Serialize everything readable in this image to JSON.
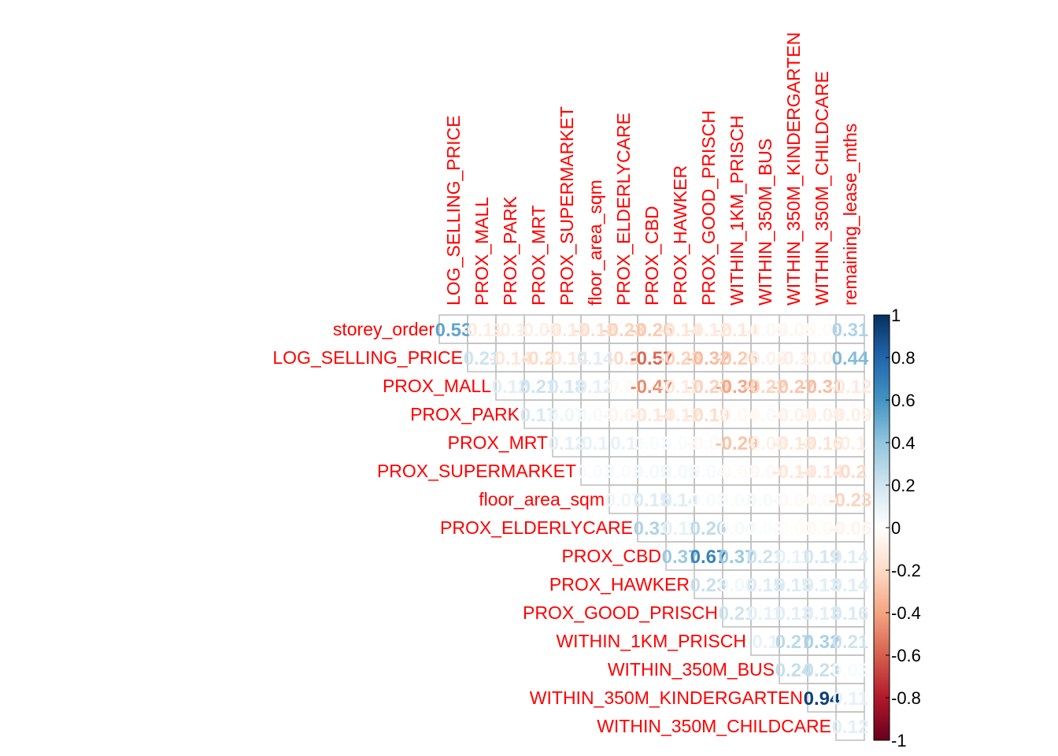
{
  "chart_data": {
    "type": "heatmap",
    "style": "upper-triangle correlation matrix (corrplot, method=number)",
    "row_labels": [
      "storey_order",
      "LOG_SELLING_PRICE",
      "PROX_MALL",
      "PROX_PARK",
      "PROX_MRT",
      "PROX_SUPERMARKET",
      "floor_area_sqm",
      "PROX_ELDERLYCARE",
      "PROX_CBD",
      "PROX_HAWKER",
      "PROX_GOOD_PRISCH",
      "WITHIN_1KM_PRISCH",
      "WITHIN_350M_BUS",
      "WITHIN_350M_KINDERGARTEN",
      "WITHIN_350M_CHILDCARE"
    ],
    "col_labels": [
      "LOG_SELLING_PRICE",
      "PROX_MALL",
      "PROX_PARK",
      "PROX_MRT",
      "PROX_SUPERMARKET",
      "floor_area_sqm",
      "PROX_ELDERLYCARE",
      "PROX_CBD",
      "PROX_HAWKER",
      "PROX_GOOD_PRISCH",
      "WITHIN_1KM_PRISCH",
      "WITHIN_350M_BUS",
      "WITHIN_350M_KINDERGARTEN",
      "WITHIN_350M_CHILDCARE",
      "remaining_lease_mths"
    ],
    "values": [
      [
        0.53,
        -0.11,
        -0.1,
        -0.09,
        -0.13,
        -0.18,
        -0.23,
        -0.26,
        -0.14,
        -0.12,
        -0.14,
        -0.05,
        -0.05,
        -0.03,
        0.31
      ],
      [
        null,
        0.21,
        -0.14,
        -0.2,
        -0.14,
        0.14,
        -0.2,
        -0.57,
        -0.23,
        -0.32,
        -0.26,
        -0.08,
        -0.1,
        -0.08,
        0.44
      ],
      [
        null,
        null,
        0.12,
        0.21,
        0.18,
        0.12,
        -0.04,
        -0.47,
        -0.12,
        -0.23,
        -0.39,
        -0.22,
        -0.27,
        -0.31,
        -0.12
      ],
      [
        null,
        null,
        null,
        0.17,
        0.07,
        0.04,
        -0.06,
        -0.14,
        -0.12,
        -0.19,
        -0.04,
        -0.04,
        -0.08,
        -0.09,
        -0.09
      ],
      [
        null,
        null,
        null,
        null,
        0.12,
        0.1,
        0.1,
        0.03,
        0.03,
        -0.04,
        -0.29,
        -0.08,
        -0.13,
        -0.16,
        -0.1
      ],
      [
        null,
        null,
        null,
        null,
        null,
        0.03,
        0.03,
        0.05,
        0.05,
        0.04,
        -0.03,
        -0.04,
        -0.14,
        -0.14,
        -0.2
      ],
      [
        null,
        null,
        null,
        null,
        null,
        null,
        0.07,
        0.15,
        0.14,
        0.03,
        0.03,
        0.04,
        -0.04,
        -0.04,
        -0.23
      ],
      [
        null,
        null,
        null,
        null,
        null,
        null,
        null,
        0.31,
        0.11,
        0.26,
        0.04,
        0.02,
        -0.02,
        -0.04,
        -0.06
      ],
      [
        null,
        null,
        null,
        null,
        null,
        null,
        null,
        null,
        0.37,
        0.67,
        0.37,
        0.21,
        0.11,
        0.19,
        0.14
      ],
      [
        null,
        null,
        null,
        null,
        null,
        null,
        null,
        null,
        null,
        0.23,
        0.06,
        0.15,
        0.15,
        0.13,
        0.14
      ],
      [
        null,
        null,
        null,
        null,
        null,
        null,
        null,
        null,
        null,
        null,
        0.21,
        0.11,
        0.13,
        0.13,
        0.16
      ],
      [
        null,
        null,
        null,
        null,
        null,
        null,
        null,
        null,
        null,
        null,
        null,
        0.1,
        0.27,
        0.32,
        0.21
      ],
      [
        null,
        null,
        null,
        null,
        null,
        null,
        null,
        null,
        null,
        null,
        null,
        null,
        0.24,
        0.23,
        0.03
      ],
      [
        null,
        null,
        null,
        null,
        null,
        null,
        null,
        null,
        null,
        null,
        null,
        null,
        null,
        0.94,
        0.11
      ],
      [
        null,
        null,
        null,
        null,
        null,
        null,
        null,
        null,
        null,
        null,
        null,
        null,
        null,
        null,
        0.12
      ]
    ],
    "color_scale": {
      "min": -1,
      "max": 1,
      "ticks": [
        "1",
        "0.8",
        "0.6",
        "0.4",
        "0.2",
        "0",
        "-0.2",
        "-0.4",
        "-0.6",
        "-0.8",
        "-1"
      ],
      "palette": [
        "#67001F",
        "#B2182B",
        "#D6604D",
        "#F4A582",
        "#FDDBC7",
        "#FFFFFF",
        "#D1E5F0",
        "#92C5DE",
        "#4393C3",
        "#2166AC",
        "#053061"
      ],
      "placement": "right"
    },
    "label_color": "#FF0000",
    "grid_color": "#BEBEBE",
    "grid": true
  }
}
